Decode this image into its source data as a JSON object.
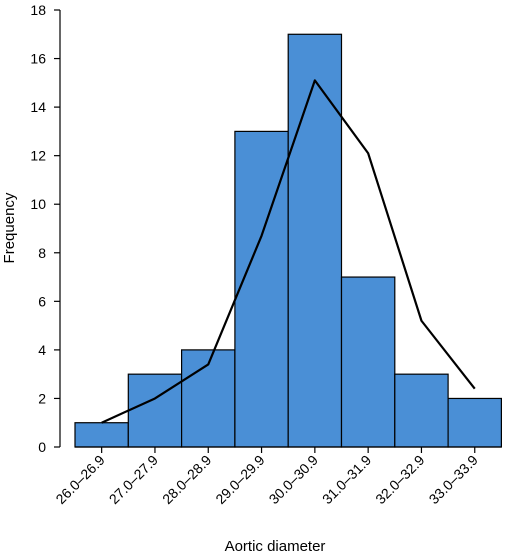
{
  "chart_data": {
    "type": "bar",
    "xlabel": "Aortic diameter",
    "ylabel": "Frequency",
    "ylim": [
      0,
      18
    ],
    "yticks": [
      0,
      2,
      4,
      6,
      8,
      10,
      12,
      14,
      16,
      18
    ],
    "grid": false,
    "legend": "none",
    "categories": [
      "26.0–26.9",
      "27.0–27.9",
      "28.0–28.9",
      "29.0–29.9",
      "30.0–30.9",
      "31.0–31.9",
      "32.0–32.9",
      "33.0–33.9"
    ],
    "values": [
      1,
      3,
      4,
      13,
      17,
      7,
      3,
      2
    ],
    "overlay_line": [
      1,
      2,
      3.4,
      8.7,
      15.1,
      12.1,
      5.2,
      2.4
    ],
    "colors": {
      "bar_fill": "#4a8fd6",
      "bar_stroke": "#000000",
      "line": "#000000"
    }
  }
}
